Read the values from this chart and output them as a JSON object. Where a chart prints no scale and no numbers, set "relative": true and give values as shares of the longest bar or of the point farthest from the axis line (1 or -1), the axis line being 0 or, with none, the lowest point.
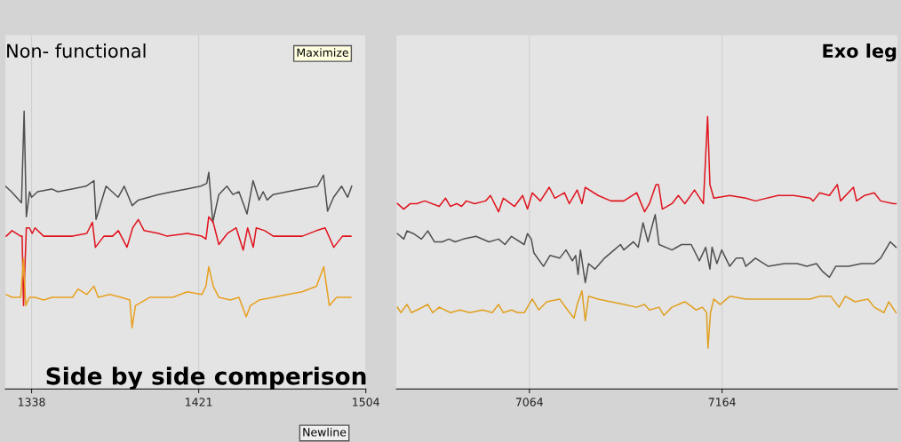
{
  "chart_data": [
    {
      "type": "line",
      "title": "Non- functional",
      "relative": true,
      "xlim": [
        1325,
        1504
      ],
      "xticks": [
        1338,
        1421,
        1504
      ],
      "grid": "x",
      "tick_labels": "x",
      "marker": "none",
      "line_style": "solid",
      "annotations": [
        "Side by side comperison",
        "Maximize",
        "Newline"
      ],
      "series": [
        {
          "color": "#505050",
          "x": [
            1325,
            1328,
            1333,
            1334.3,
            1335.4,
            1337,
            1338,
            1341,
            1348,
            1351,
            1358,
            1365,
            1369,
            1370,
            1375,
            1378,
            1381,
            1384,
            1388,
            1391,
            1401,
            1408,
            1415,
            1422,
            1425,
            1426,
            1428,
            1431,
            1435,
            1438,
            1441,
            1445,
            1448,
            1451,
            1453,
            1455,
            1458,
            1465,
            1472,
            1480,
            1483,
            1485,
            1488,
            1492,
            1495,
            1497
          ],
          "values": [
            0.73,
            0.71,
            0.67,
            1.0,
            0.62,
            0.71,
            0.69,
            0.71,
            0.72,
            0.71,
            0.72,
            0.73,
            0.75,
            0.61,
            0.73,
            0.71,
            0.69,
            0.73,
            0.66,
            0.68,
            0.7,
            0.71,
            0.72,
            0.73,
            0.74,
            0.78,
            0.6,
            0.7,
            0.73,
            0.7,
            0.71,
            0.63,
            0.75,
            0.68,
            0.71,
            0.68,
            0.7,
            0.71,
            0.72,
            0.73,
            0.77,
            0.64,
            0.69,
            0.73,
            0.69,
            0.73
          ]
        },
        {
          "color": "#e0141e",
          "x": [
            1325.4,
            1328.3,
            1332.6,
            1333.3,
            1334,
            1335.4,
            1336.9,
            1338.3,
            1339.7,
            1344,
            1351.1,
            1358.3,
            1365.4,
            1368.2,
            1369.7,
            1373.9,
            1378.2,
            1381.1,
            1385.4,
            1388.2,
            1391,
            1393.9,
            1401.1,
            1405.3,
            1415.3,
            1422.5,
            1424.6,
            1426,
            1428.2,
            1431,
            1435.3,
            1439.6,
            1443.1,
            1445.3,
            1448.1,
            1449.6,
            1453.8,
            1458.1,
            1465.2,
            1472.4,
            1479.5,
            1483.8,
            1488.1,
            1492.4,
            1496.6
          ],
          "values": [
            0.55,
            0.57,
            0.55,
            0.55,
            0.3,
            0.58,
            0.58,
            0.56,
            0.58,
            0.55,
            0.55,
            0.55,
            0.56,
            0.6,
            0.51,
            0.55,
            0.55,
            0.57,
            0.51,
            0.58,
            0.61,
            0.57,
            0.56,
            0.55,
            0.56,
            0.55,
            0.54,
            0.62,
            0.6,
            0.52,
            0.56,
            0.58,
            0.5,
            0.58,
            0.51,
            0.58,
            0.57,
            0.55,
            0.55,
            0.55,
            0.57,
            0.58,
            0.51,
            0.55,
            0.55
          ]
        },
        {
          "color": "#e8a020",
          "x": [
            1325.4,
            1328.3,
            1332.6,
            1334,
            1335.1,
            1336.9,
            1339.7,
            1344,
            1348.3,
            1358.3,
            1361.1,
            1365.4,
            1369,
            1371.1,
            1376.8,
            1382.5,
            1386.8,
            1387.9,
            1389.6,
            1396.8,
            1402.5,
            1408.2,
            1415.3,
            1422.5,
            1424.6,
            1426,
            1428.2,
            1431,
            1436.7,
            1441,
            1444.6,
            1446.7,
            1451,
            1458.1,
            1465.2,
            1472.4,
            1479.5,
            1483.1,
            1485.9,
            1489.5,
            1496.6
          ],
          "values": [
            0.34,
            0.33,
            0.33,
            0.47,
            0.3,
            0.33,
            0.33,
            0.32,
            0.33,
            0.33,
            0.36,
            0.34,
            0.37,
            0.33,
            0.34,
            0.33,
            0.32,
            0.22,
            0.3,
            0.33,
            0.33,
            0.33,
            0.35,
            0.34,
            0.37,
            0.44,
            0.37,
            0.33,
            0.32,
            0.33,
            0.26,
            0.3,
            0.32,
            0.33,
            0.34,
            0.35,
            0.37,
            0.44,
            0.3,
            0.33,
            0.33
          ]
        }
      ]
    },
    {
      "type": "line",
      "title": "Exo leg",
      "relative": true,
      "xlim": [
        6995,
        7255
      ],
      "xticks": [
        7064,
        7164
      ],
      "grid": "x",
      "tick_labels": "x",
      "marker": "none",
      "line_style": "solid",
      "series": [
        {
          "color": "#e0141e",
          "x": [
            6995.5,
            6998.8,
            7002.2,
            7005.5,
            7009.7,
            7017.2,
            7020.5,
            7023,
            7026.3,
            7028.8,
            7031.3,
            7035.5,
            7041.3,
            7043.8,
            7048,
            7050.5,
            7056.3,
            7060.5,
            7063,
            7065.5,
            7069.7,
            7074.3,
            7077.2,
            7082.2,
            7084.7,
            7088.8,
            7091.3,
            7093,
            7099.7,
            7106.3,
            7113,
            7119.7,
            7123.8,
            7126.3,
            7129.7,
            7131,
            7133,
            7138,
            7141.3,
            7144.7,
            7149.7,
            7154.3,
            7156.5,
            7157.7,
            7159.7,
            7168,
            7176.3,
            7181.3,
            7193,
            7201.3,
            7209.7,
            7211.3,
            7214.7,
            7219.7,
            7223.8,
            7225.5,
            7232.2,
            7233.8,
            7238,
            7243,
            7246.3,
            7253,
            7254.3
          ],
          "values": [
            0.68,
            0.66,
            0.68,
            0.68,
            0.69,
            0.67,
            0.7,
            0.67,
            0.68,
            0.67,
            0.69,
            0.68,
            0.69,
            0.71,
            0.65,
            0.7,
            0.67,
            0.71,
            0.66,
            0.72,
            0.69,
            0.74,
            0.7,
            0.72,
            0.68,
            0.73,
            0.68,
            0.74,
            0.71,
            0.69,
            0.69,
            0.72,
            0.65,
            0.68,
            0.75,
            0.75,
            0.66,
            0.68,
            0.71,
            0.68,
            0.73,
            0.68,
            1.0,
            0.75,
            0.7,
            0.71,
            0.7,
            0.69,
            0.71,
            0.71,
            0.7,
            0.69,
            0.72,
            0.71,
            0.75,
            0.69,
            0.74,
            0.69,
            0.71,
            0.72,
            0.69,
            0.68,
            0.68
          ]
        },
        {
          "color": "#505050",
          "x": [
            6995.5,
            6998.8,
            7000.5,
            7003.8,
            7008,
            7011.3,
            7014.7,
            7018.8,
            7022.2,
            7025.5,
            7029.7,
            7036.3,
            7043,
            7048,
            7051.3,
            7054.7,
            7061.3,
            7063,
            7065,
            7066.3,
            7071.3,
            7074.7,
            7079.7,
            7083,
            7086.3,
            7088,
            7089.3,
            7090.5,
            7093,
            7094.7,
            7098,
            7103,
            7108,
            7111.3,
            7113,
            7118,
            7120.5,
            7123,
            7125.5,
            7129.3,
            7131.3,
            7138,
            7143,
            7148,
            7152.2,
            7155.5,
            7157.7,
            7158.8,
            7161.3,
            7163.8,
            7168,
            7171.3,
            7174.7,
            7176.3,
            7181.3,
            7188,
            7196.3,
            7203,
            7208,
            7213,
            7216.3,
            7219.7,
            7223,
            7229.7,
            7236.3,
            7243,
            7246.3,
            7251.3,
            7254.3
          ],
          "values": [
            0.57,
            0.55,
            0.58,
            0.57,
            0.55,
            0.58,
            0.54,
            0.54,
            0.55,
            0.54,
            0.55,
            0.56,
            0.54,
            0.55,
            0.53,
            0.56,
            0.53,
            0.57,
            0.55,
            0.5,
            0.45,
            0.49,
            0.48,
            0.51,
            0.47,
            0.49,
            0.42,
            0.51,
            0.39,
            0.46,
            0.44,
            0.48,
            0.51,
            0.53,
            0.51,
            0.54,
            0.52,
            0.61,
            0.54,
            0.64,
            0.53,
            0.51,
            0.53,
            0.53,
            0.47,
            0.52,
            0.44,
            0.52,
            0.46,
            0.51,
            0.45,
            0.48,
            0.48,
            0.45,
            0.48,
            0.45,
            0.46,
            0.46,
            0.45,
            0.46,
            0.43,
            0.41,
            0.45,
            0.45,
            0.46,
            0.46,
            0.48,
            0.54,
            0.52
          ]
        },
        {
          "color": "#e0a020",
          "x": [
            6995.5,
            6997.3,
            7000.5,
            7002.8,
            7005.7,
            7011.3,
            7013.8,
            7017.2,
            7023,
            7028,
            7033,
            7039.7,
            7044.7,
            7048,
            7050.5,
            7054.7,
            7058,
            7061.3,
            7065.5,
            7068.8,
            7073,
            7079.7,
            7083.8,
            7087.2,
            7088.8,
            7091.3,
            7093,
            7094.7,
            7099.7,
            7106.3,
            7113,
            7119.7,
            7123.8,
            7126.3,
            7131.3,
            7133.8,
            7138,
            7144.7,
            7150.5,
            7153.8,
            7156,
            7156.7,
            7158,
            7159.7,
            7163,
            7168,
            7176.3,
            7184.7,
            7193,
            7201.3,
            7209.7,
            7214.7,
            7220.5,
            7224.7,
            7228,
            7233,
            7239.7,
            7243,
            7248,
            7250.5,
            7254.3
          ],
          "values": [
            0.3,
            0.28,
            0.31,
            0.28,
            0.29,
            0.31,
            0.28,
            0.3,
            0.28,
            0.29,
            0.28,
            0.29,
            0.28,
            0.31,
            0.28,
            0.29,
            0.28,
            0.28,
            0.33,
            0.29,
            0.32,
            0.33,
            0.29,
            0.26,
            0.31,
            0.36,
            0.25,
            0.34,
            0.33,
            0.32,
            0.31,
            0.3,
            0.31,
            0.29,
            0.3,
            0.27,
            0.3,
            0.32,
            0.29,
            0.3,
            0.28,
            0.15,
            0.28,
            0.33,
            0.31,
            0.34,
            0.33,
            0.33,
            0.33,
            0.33,
            0.33,
            0.34,
            0.34,
            0.3,
            0.34,
            0.32,
            0.33,
            0.3,
            0.28,
            0.32,
            0.28
          ]
        }
      ]
    }
  ]
}
